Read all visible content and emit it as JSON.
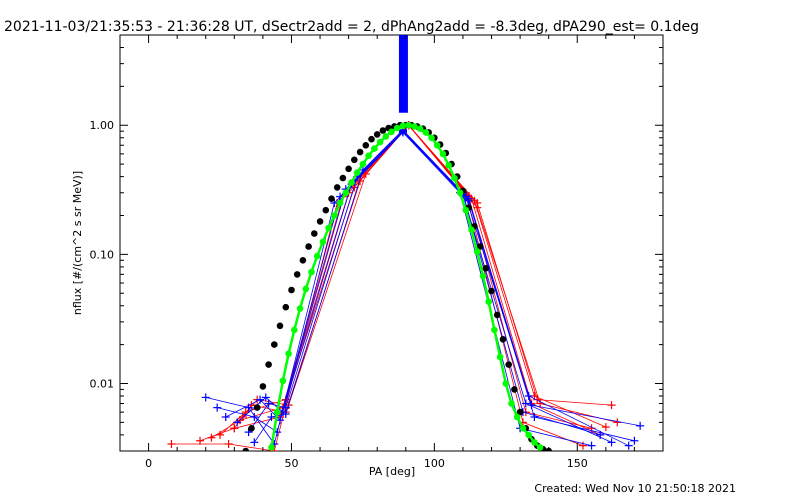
{
  "chart_data": {
    "type": "line",
    "title": "2021-11-03/21:35:53 - 21:36:28 UT, dSectr2add = 2, dPhAng2add = -8.3deg, dPA290_est=  0.1deg",
    "xlabel": "PA [deg]",
    "ylabel": "nflux [#/(cm^2 s sr MeV)]",
    "footer": "Created: Wed Nov 10 21:50:18 2021",
    "xlim": [
      -10,
      180
    ],
    "ylim": [
      0.003,
      5
    ],
    "yscale": "log",
    "grid": false,
    "x_ticks": [
      0,
      50,
      100,
      150
    ],
    "x_tick_labels": [
      "0",
      "50",
      "100",
      "150"
    ],
    "y_ticks": [
      0.01,
      0.1,
      1.0
    ],
    "y_tick_labels": [
      "0.01",
      "0.10",
      "1.00"
    ],
    "colors": {
      "red": "#ff0000",
      "blue": "#0000ff",
      "black": "#000000",
      "green": "#00ff00"
    },
    "series": [
      {
        "style": "black-dots",
        "x": [
          34,
          36,
          38,
          40,
          42,
          44,
          46,
          48,
          50,
          52,
          54,
          56,
          58,
          60,
          62,
          64,
          66,
          68,
          70,
          72,
          74,
          76,
          78,
          80,
          82,
          84,
          86,
          88,
          90,
          92,
          94,
          96,
          98,
          100,
          102,
          104,
          106,
          108,
          110,
          112,
          114,
          116,
          118,
          120,
          122,
          124,
          126,
          128,
          130,
          132,
          134,
          136,
          138,
          140
        ],
        "y": [
          0.003,
          0.0045,
          0.0065,
          0.0095,
          0.014,
          0.02,
          0.028,
          0.039,
          0.053,
          0.07,
          0.09,
          0.115,
          0.145,
          0.18,
          0.22,
          0.27,
          0.33,
          0.39,
          0.46,
          0.54,
          0.62,
          0.7,
          0.78,
          0.85,
          0.91,
          0.95,
          0.98,
          1.0,
          1.0,
          1.0,
          0.98,
          0.94,
          0.88,
          0.8,
          0.71,
          0.61,
          0.5,
          0.4,
          0.31,
          0.23,
          0.165,
          0.115,
          0.078,
          0.052,
          0.034,
          0.022,
          0.014,
          0.009,
          0.006,
          0.0045,
          0.0037,
          0.0033,
          0.0031,
          0.003
        ]
      },
      {
        "style": "green-dots",
        "x": [
          43,
          45,
          47,
          49,
          51,
          53,
          55,
          57,
          59,
          61,
          63,
          65,
          67,
          69,
          71,
          73,
          75,
          77,
          79,
          81,
          83,
          85,
          87,
          89,
          91,
          93,
          95,
          97,
          99,
          101,
          103,
          105,
          107,
          109,
          111,
          113,
          115,
          117,
          119,
          121,
          123,
          125,
          127,
          129,
          131,
          133,
          135,
          137
        ],
        "y": [
          0.0032,
          0.006,
          0.0105,
          0.017,
          0.026,
          0.038,
          0.054,
          0.073,
          0.097,
          0.125,
          0.16,
          0.2,
          0.25,
          0.3,
          0.36,
          0.43,
          0.5,
          0.58,
          0.66,
          0.74,
          0.82,
          0.89,
          0.95,
          0.99,
          1.0,
          0.98,
          0.94,
          0.88,
          0.8,
          0.7,
          0.6,
          0.49,
          0.39,
          0.3,
          0.22,
          0.155,
          0.105,
          0.068,
          0.043,
          0.026,
          0.016,
          0.01,
          0.007,
          0.0055,
          0.0045,
          0.004,
          0.0035,
          0.0032
        ]
      },
      {
        "style": "red-lines",
        "lines": [
          {
            "x": [
              8,
              28,
              44,
              66,
              91,
              111,
              131,
              152
            ],
            "y": [
              0.0034,
              0.0034,
              0.003,
              0.25,
              1.0,
              0.3,
              0.005,
              0.0033
            ]
          },
          {
            "x": [
              18,
              30,
              46,
              68,
              91,
              112,
              132,
              155
            ],
            "y": [
              0.0036,
              0.0045,
              0.0055,
              0.28,
              1.0,
              0.28,
              0.006,
              0.0045
            ]
          },
          {
            "x": [
              22,
              32,
              47,
              70,
              91,
              113,
              134,
              158
            ],
            "y": [
              0.0038,
              0.0052,
              0.0065,
              0.3,
              1.0,
              0.27,
              0.007,
              0.004
            ]
          },
          {
            "x": [
              25,
              34,
              48,
              72,
              91,
              114,
              135,
              160
            ],
            "y": [
              0.004,
              0.006,
              0.0075,
              0.33,
              1.0,
              0.26,
              0.008,
              0.0046
            ]
          },
          {
            "x": [
              30,
              36,
              48,
              74,
              91,
              115,
              136,
              162
            ],
            "y": [
              0.0045,
              0.0068,
              0.006,
              0.37,
              1.0,
              0.25,
              0.0075,
              0.0068
            ]
          },
          {
            "x": [
              33,
              38,
              49,
              76,
              91,
              115,
              137,
              164
            ],
            "y": [
              0.0055,
              0.0075,
              0.0068,
              0.42,
              1.0,
              0.23,
              0.007,
              0.005
            ]
          }
        ]
      },
      {
        "style": "blue-lines",
        "lines": [
          {
            "x": [
              20,
              35,
              44,
              65,
              89,
              109,
              130,
              155
            ],
            "y": [
              0.0078,
              0.0065,
              0.0034,
              0.25,
              0.88,
              0.3,
              0.0045,
              0.0033
            ]
          },
          {
            "x": [
              24,
              37,
              45,
              67,
              89,
              110,
              131,
              158
            ],
            "y": [
              0.0065,
              0.0055,
              0.0042,
              0.28,
              0.88,
              0.3,
              0.006,
              0.004
            ]
          },
          {
            "x": [
              27,
              39,
              46,
              69,
              89,
              110,
              132,
              162
            ],
            "y": [
              0.0055,
              0.0075,
              0.0052,
              0.32,
              0.9,
              0.29,
              0.007,
              0.0035
            ]
          },
          {
            "x": [
              31,
              41,
              47,
              71,
              89,
              111,
              133,
              168
            ],
            "y": [
              0.005,
              0.0078,
              0.006,
              0.35,
              0.9,
              0.28,
              0.008,
              0.0033
            ]
          },
          {
            "x": [
              35,
              42,
              48,
              73,
              89,
              112,
              134,
              172
            ],
            "y": [
              0.0042,
              0.007,
              0.0065,
              0.4,
              0.92,
              0.27,
              0.0068,
              0.0047
            ]
          },
          {
            "x": [
              37,
              43,
              48,
              75,
              89,
              112,
              135,
              170
            ],
            "y": [
              0.0035,
              0.0055,
              0.0058,
              0.45,
              0.92,
              0.26,
              0.0055,
              0.0036
            ]
          }
        ]
      },
      {
        "style": "blue-bar",
        "x": 89,
        "y_range": [
          1.25,
          5
        ]
      }
    ]
  }
}
